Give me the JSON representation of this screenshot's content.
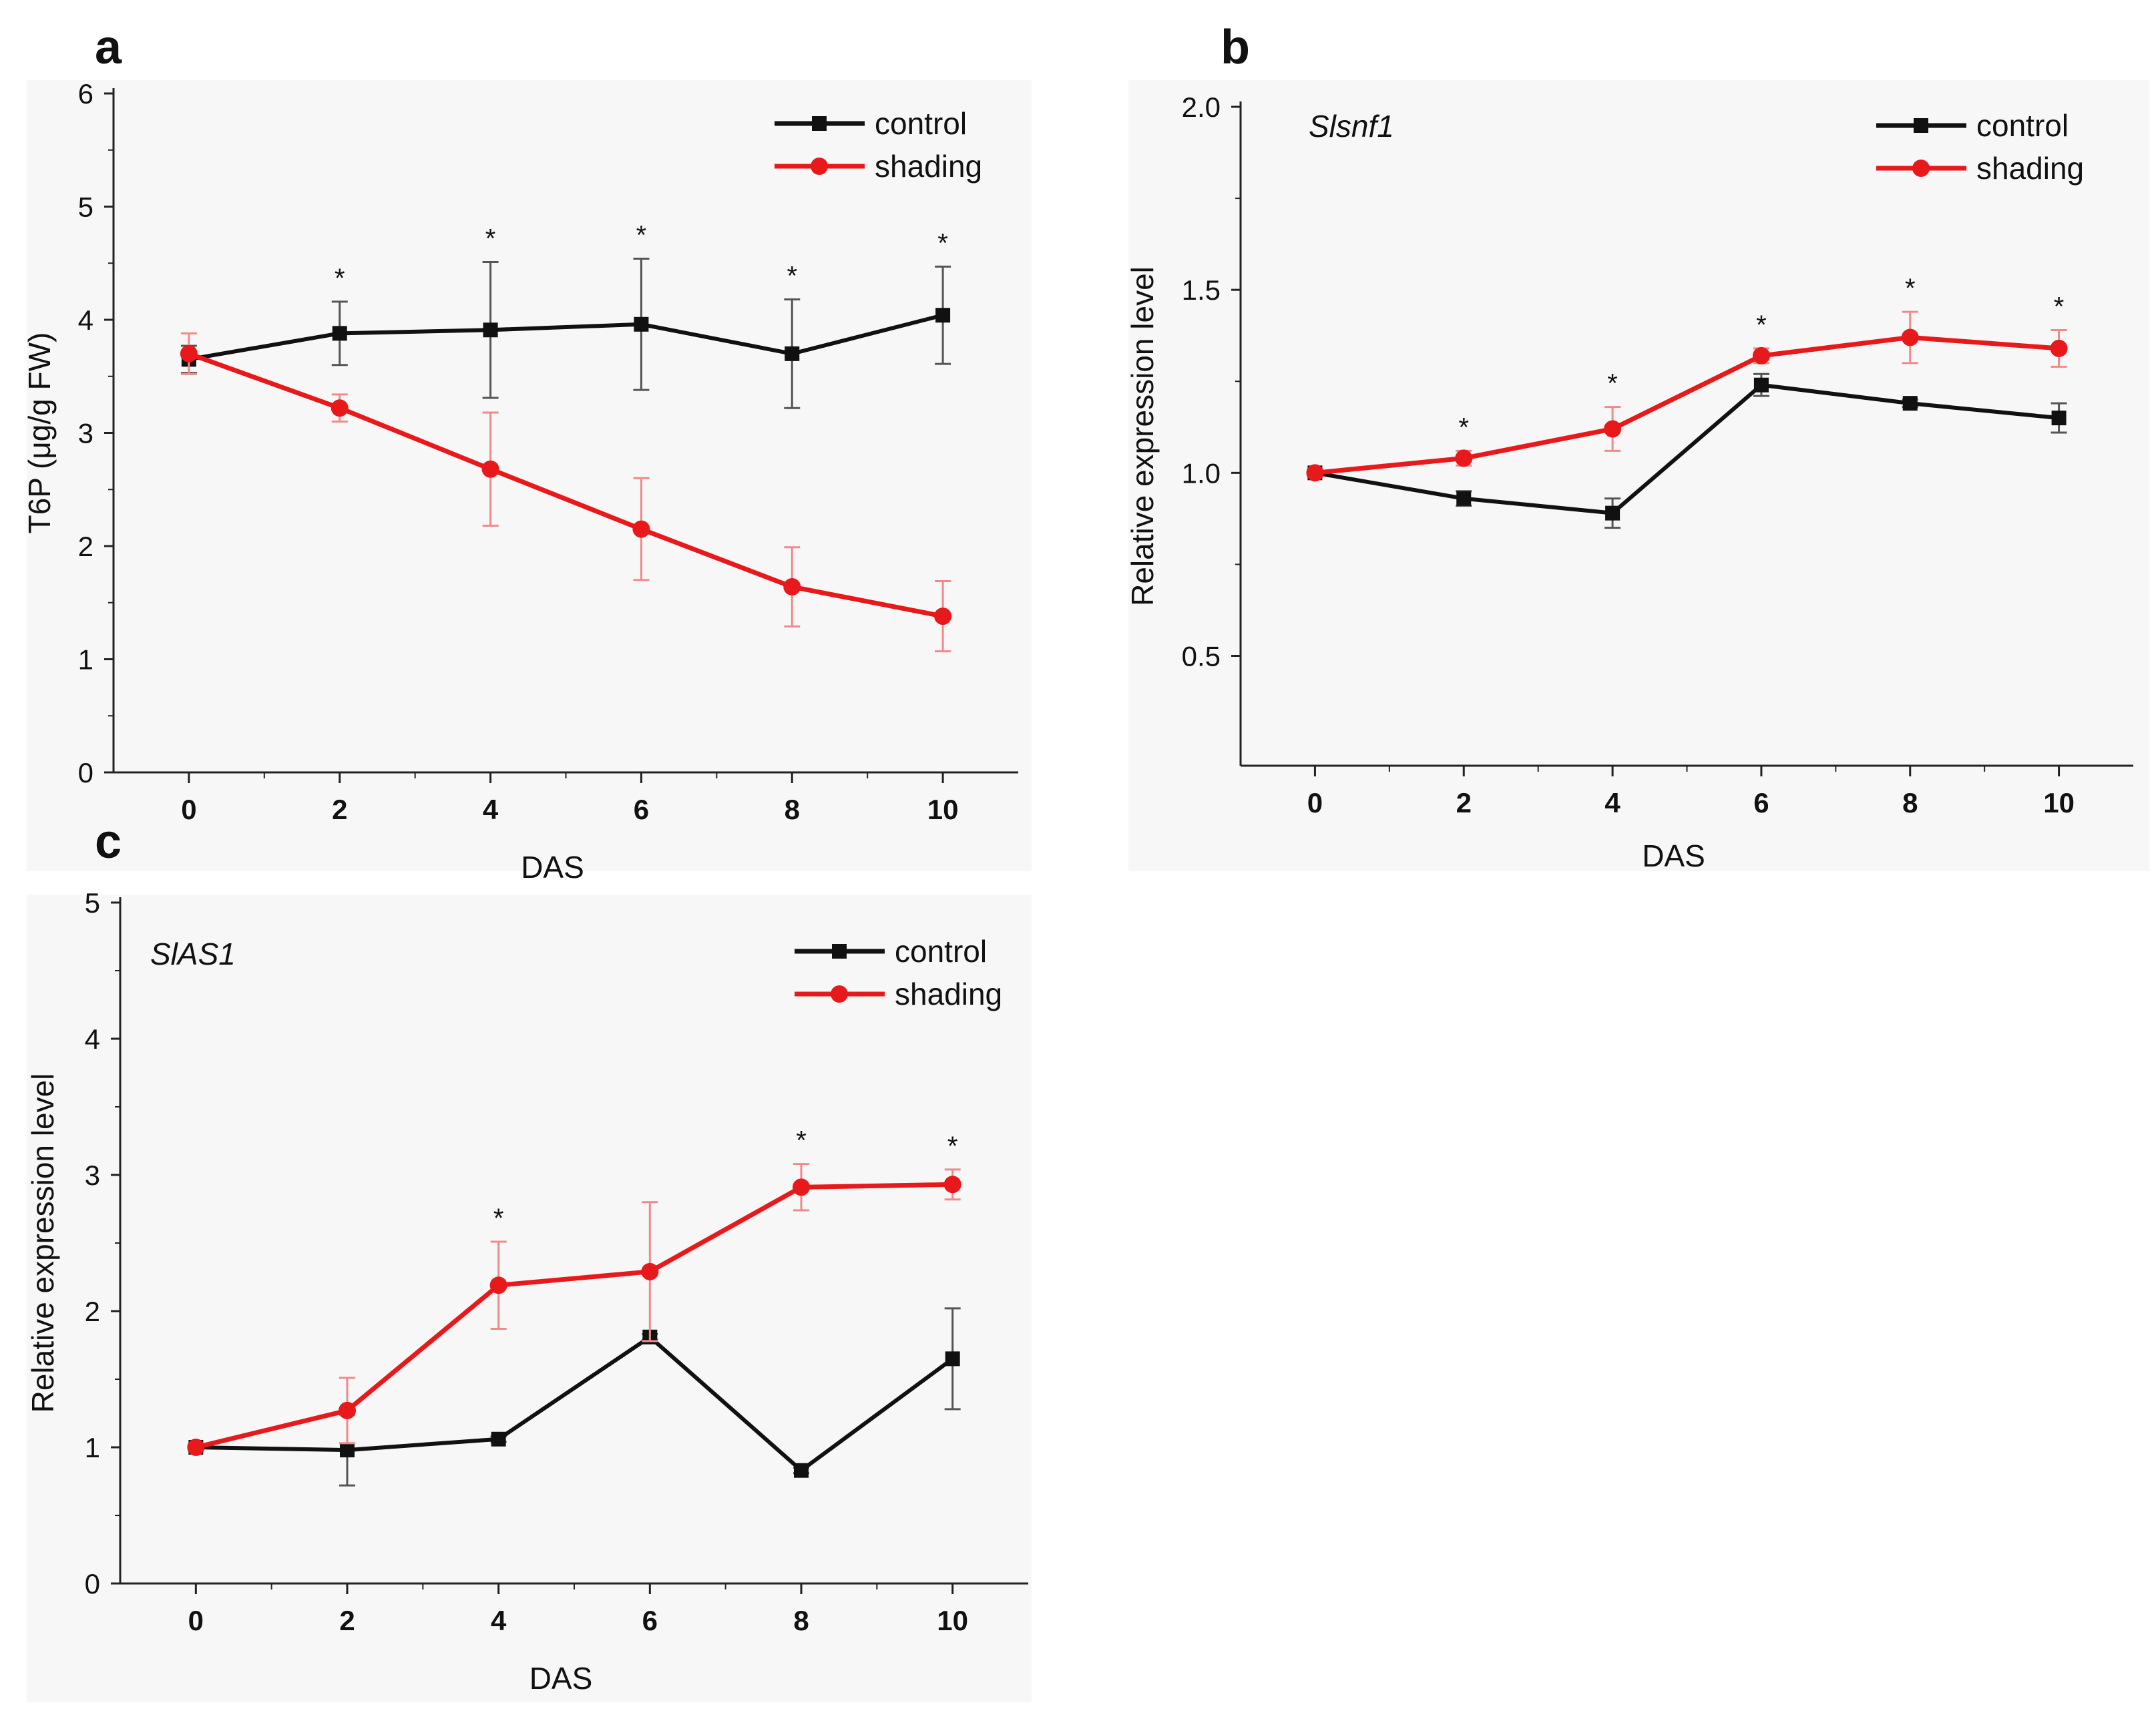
{
  "figure": {
    "panels": [
      "a",
      "b",
      "c"
    ]
  },
  "colors": {
    "control": "#111111",
    "shading": "#e8191b",
    "shading_err": "#f08a8a",
    "control_err": "#555555",
    "panel_bg": "#f7f7f7",
    "axis": "#222222"
  },
  "chart_data": [
    {
      "panel_label": "a",
      "type": "line",
      "title": "",
      "gene_label": "",
      "xlabel": "DAS",
      "ylabel": "T6P (μg/g FW)",
      "x": [
        0,
        2,
        4,
        6,
        8,
        10
      ],
      "xticks": [
        "0",
        "2",
        "4",
        "6",
        "8",
        "10"
      ],
      "xlim": [
        -1,
        11
      ],
      "ylim": [
        0,
        6
      ],
      "yticks": [
        "0",
        "1",
        "2",
        "3",
        "4",
        "5",
        "6"
      ],
      "ytick_values": [
        0,
        1,
        2,
        3,
        4,
        5,
        6
      ],
      "legend": [
        "control",
        "shading"
      ],
      "legend_position": "top-right",
      "significance": [
        false,
        true,
        true,
        true,
        true,
        true
      ],
      "significance_mark": "*",
      "series": [
        {
          "name": "control",
          "values": [
            3.65,
            3.88,
            3.91,
            3.96,
            3.7,
            4.04
          ],
          "errors": [
            0.12,
            0.28,
            0.6,
            0.58,
            0.48,
            0.43
          ]
        },
        {
          "name": "shading",
          "values": [
            3.7,
            3.22,
            2.68,
            2.15,
            1.64,
            1.38
          ],
          "errors": [
            0.18,
            0.12,
            0.5,
            0.45,
            0.35,
            0.31
          ]
        }
      ]
    },
    {
      "panel_label": "b",
      "type": "line",
      "title": "",
      "gene_label": "Slsnf1",
      "xlabel": "DAS",
      "ylabel": "Relative expression level",
      "x": [
        0,
        2,
        4,
        6,
        8,
        10
      ],
      "xticks": [
        "0",
        "2",
        "4",
        "6",
        "8",
        "10"
      ],
      "xlim": [
        -1,
        11
      ],
      "ylim": [
        0.2,
        2.0
      ],
      "yticks": [
        "0.5",
        "1.0",
        "1.5",
        "2.0"
      ],
      "ytick_values": [
        0.5,
        1.0,
        1.5,
        2.0
      ],
      "legend": [
        "control",
        "shading"
      ],
      "legend_position": "top-right",
      "significance": [
        false,
        true,
        true,
        true,
        true,
        true
      ],
      "significance_mark": "*",
      "series": [
        {
          "name": "control",
          "values": [
            1.0,
            0.93,
            0.89,
            1.24,
            1.19,
            1.15
          ],
          "errors": [
            0.01,
            0.02,
            0.04,
            0.03,
            0.01,
            0.04
          ]
        },
        {
          "name": "shading",
          "values": [
            1.0,
            1.04,
            1.12,
            1.32,
            1.37,
            1.34
          ],
          "errors": [
            0.01,
            0.02,
            0.06,
            0.02,
            0.07,
            0.05
          ]
        }
      ]
    },
    {
      "panel_label": "c",
      "type": "line",
      "title": "",
      "gene_label": "SlAS1",
      "xlabel": "DAS",
      "ylabel": "Relative expression level",
      "x": [
        0,
        2,
        4,
        6,
        8,
        10
      ],
      "xticks": [
        "0",
        "2",
        "4",
        "6",
        "8",
        "10"
      ],
      "xlim": [
        -1,
        11
      ],
      "ylim": [
        0,
        5
      ],
      "yticks": [
        "0",
        "1",
        "2",
        "3",
        "4",
        "5"
      ],
      "ytick_values": [
        0,
        1,
        2,
        3,
        4,
        5
      ],
      "legend": [
        "control",
        "shading"
      ],
      "legend_position": "top-right",
      "significance": [
        false,
        false,
        true,
        false,
        true,
        true
      ],
      "significance_mark": "*",
      "series": [
        {
          "name": "control",
          "values": [
            1.0,
            0.98,
            1.06,
            1.81,
            0.83,
            1.65
          ],
          "errors": [
            0.02,
            0.26,
            0.02,
            0.02,
            0.02,
            0.37
          ]
        },
        {
          "name": "shading",
          "values": [
            1.0,
            1.27,
            2.19,
            2.29,
            2.91,
            2.93
          ],
          "errors": [
            0.02,
            0.24,
            0.32,
            0.51,
            0.17,
            0.11
          ]
        }
      ]
    }
  ]
}
